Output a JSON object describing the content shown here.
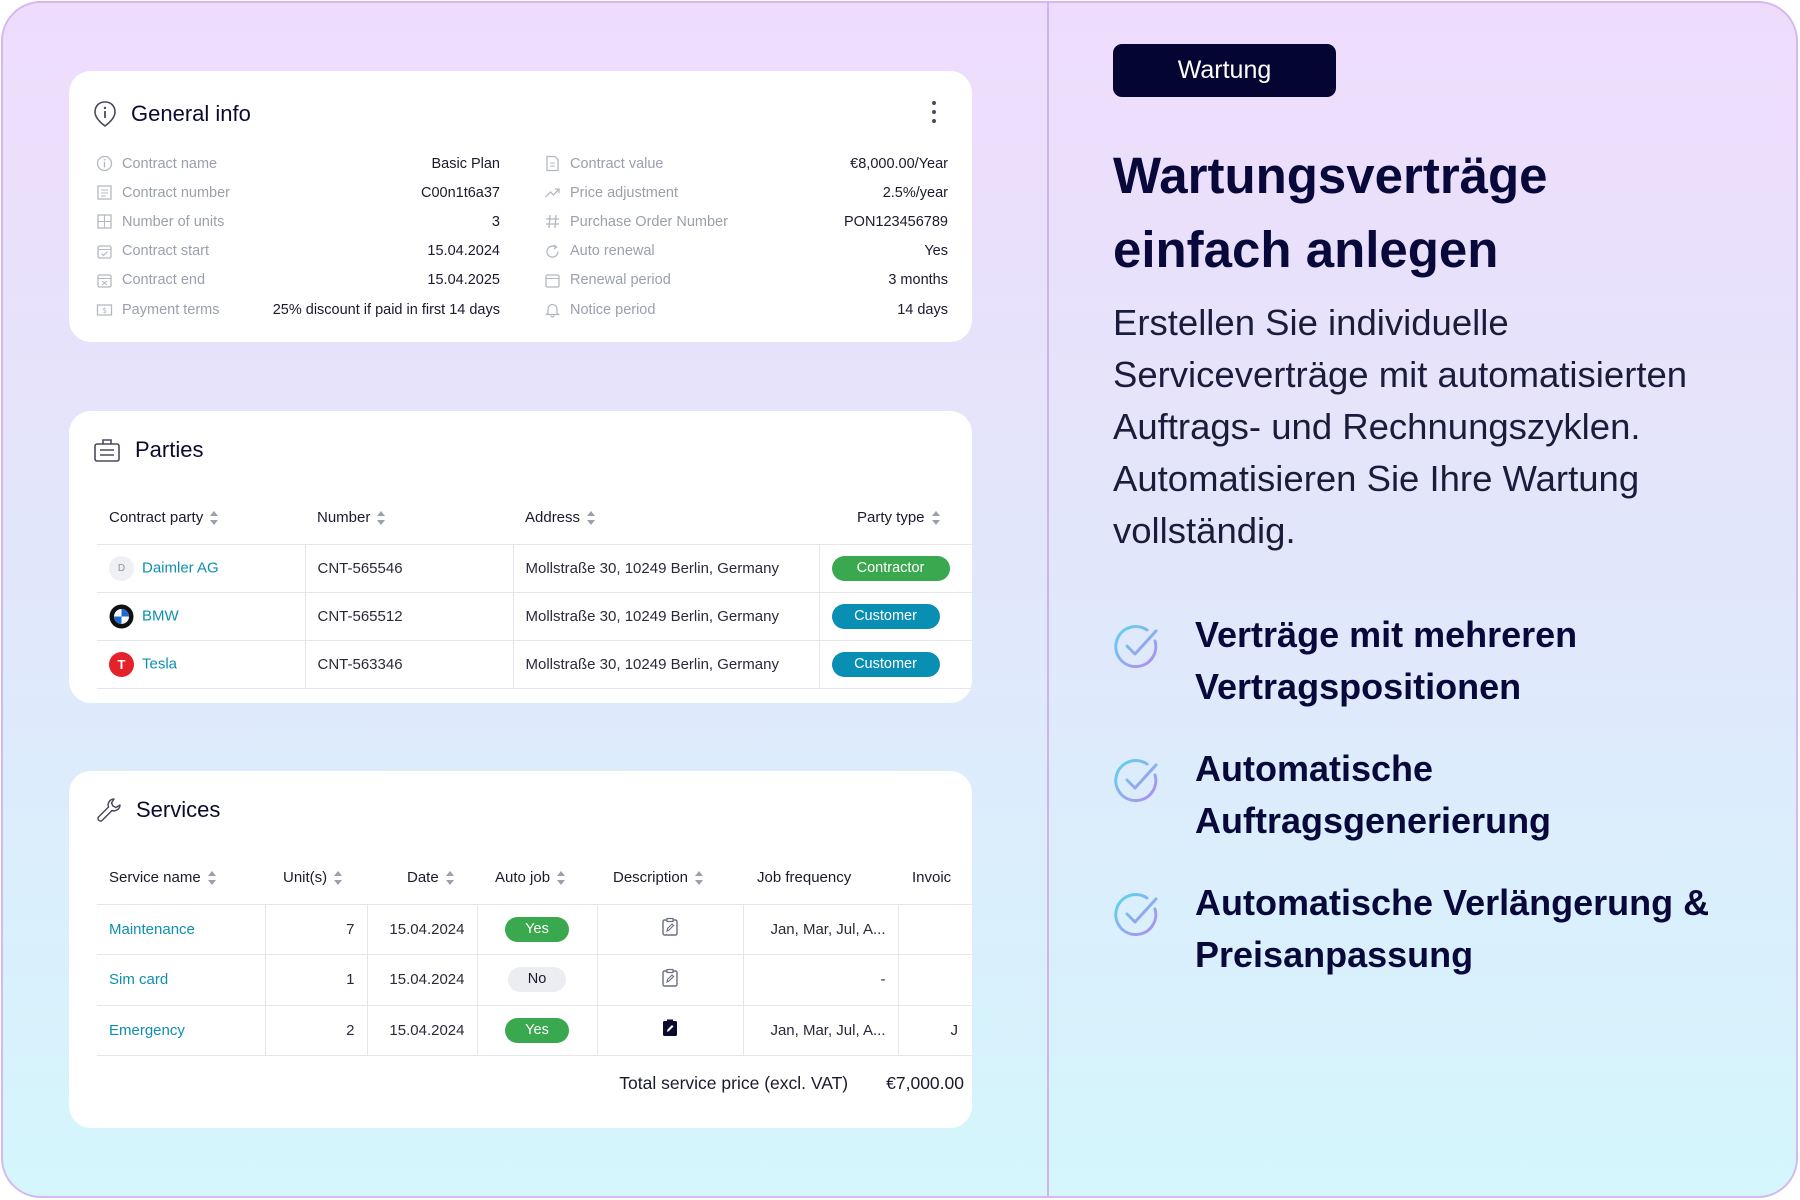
{
  "general": {
    "title": "General info",
    "left": [
      {
        "icon": "info-circle-icon",
        "label": "Contract name",
        "value": "Basic Plan"
      },
      {
        "icon": "document-icon",
        "label": "Contract number",
        "value": "C00n1t6a37"
      },
      {
        "icon": "grid-units-icon",
        "label": "Number of units",
        "value": "3"
      },
      {
        "icon": "calendar-check-icon",
        "label": "Contract start",
        "value": "15.04.2024"
      },
      {
        "icon": "calendar-x-icon",
        "label": "Contract end",
        "value": "15.04.2025"
      },
      {
        "icon": "money-icon",
        "label": "Payment terms",
        "value": "25% discount if paid in first 14 days"
      }
    ],
    "right": [
      {
        "icon": "file-value-icon",
        "label": "Contract value",
        "value": "€8,000.00/Year"
      },
      {
        "icon": "trend-up-icon",
        "label": "Price adjustment",
        "value": "2.5%/year"
      },
      {
        "icon": "hash-icon",
        "label": "Purchase Order Number",
        "value": "PON123456789"
      },
      {
        "icon": "refresh-icon",
        "label": "Auto renewal",
        "value": "Yes"
      },
      {
        "icon": "calendar-icon",
        "label": "Renewal period",
        "value": "3 months"
      },
      {
        "icon": "bell-icon",
        "label": "Notice period",
        "value": "14 days"
      }
    ]
  },
  "parties": {
    "title": "Parties",
    "headers": [
      "Contract party",
      "Number",
      "Address",
      "Party type"
    ],
    "rows": [
      {
        "logo": "D",
        "name": "Daimler AG",
        "number": "CNT-565546",
        "address": "Mollstraße 30, 10249 Berlin, Germany",
        "type": "Contractor"
      },
      {
        "logo": "",
        "name": "BMW",
        "number": "CNT-565512",
        "address": "Mollstraße 30, 10249 Berlin, Germany",
        "type": "Customer"
      },
      {
        "logo": "T",
        "name": "Tesla",
        "number": "CNT-563346",
        "address": "Mollstraße 30, 10249 Berlin, Germany",
        "type": "Customer"
      }
    ]
  },
  "services": {
    "title": "Services",
    "headers": [
      "Service name",
      "Unit(s)",
      "Date",
      "Auto job",
      "Description",
      "Job frequency",
      "Invoic"
    ],
    "rows": [
      {
        "name": "Maintenance",
        "units": "7",
        "date": "15.04.2024",
        "auto": "Yes",
        "freq": "Jan, Mar, Jul, A...",
        "invoice": ""
      },
      {
        "name": "Sim card",
        "units": "1",
        "date": "15.04.2024",
        "auto": "No",
        "freq": "-",
        "invoice": ""
      },
      {
        "name": "Emergency",
        "units": "2",
        "date": "15.04.2024",
        "auto": "Yes",
        "freq": "Jan, Mar, Jul, A...",
        "invoice": "J"
      }
    ],
    "total_label": "Total service price (excl. VAT)",
    "total_value": "€7,000.00"
  },
  "promo": {
    "tag": "Wartung",
    "headline_1": "Wartungsverträge",
    "headline_2": "einfach anlegen",
    "body": "Erstellen Sie individuelle Serviceverträge mit automatisierten Auftrags- und Rechnungszyklen. Automatisieren Sie Ihre Wartung vollständig.",
    "features": [
      {
        "line1": "Verträge mit mehreren",
        "line2": "Vertragspositionen"
      },
      {
        "line1": "Automatische",
        "line2": "Auftragsgenerierung"
      },
      {
        "line1": "Automatische Verlängerung &",
        "line2": "Preisanpassung"
      }
    ]
  },
  "colors": {
    "accent": "#0e8fb0",
    "tag_bg": "#050533",
    "green": "#3aa84e",
    "blue": "#0a8fb4"
  }
}
